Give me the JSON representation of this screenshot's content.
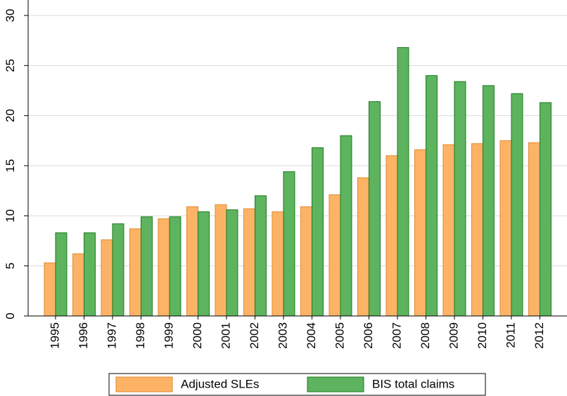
{
  "chart_data": {
    "type": "bar",
    "categories": [
      "1995",
      "1996",
      "1997",
      "1998",
      "1999",
      "2000",
      "2001",
      "2002",
      "2003",
      "2004",
      "2005",
      "2006",
      "2007",
      "2008",
      "2009",
      "2010",
      "2011",
      "2012"
    ],
    "series": [
      {
        "name": "Adjusted SLEs",
        "color": "#fdb366",
        "values": [
          5.3,
          6.2,
          7.6,
          8.7,
          9.7,
          10.9,
          11.1,
          10.7,
          10.4,
          10.9,
          12.1,
          13.8,
          16.0,
          16.6,
          17.1,
          17.2,
          17.5,
          17.3
        ]
      },
      {
        "name": "BIS total claims",
        "color": "#5db35e",
        "values": [
          8.3,
          8.3,
          9.2,
          9.9,
          9.9,
          10.4,
          10.6,
          12.0,
          14.4,
          16.8,
          18.0,
          21.4,
          26.8,
          24.0,
          23.4,
          23.0,
          22.2,
          21.3
        ]
      }
    ],
    "ylim": [
      0,
      30
    ],
    "yticks": [
      0,
      5,
      10,
      15,
      20,
      25,
      30
    ],
    "grid": true,
    "legend": "bottom"
  }
}
